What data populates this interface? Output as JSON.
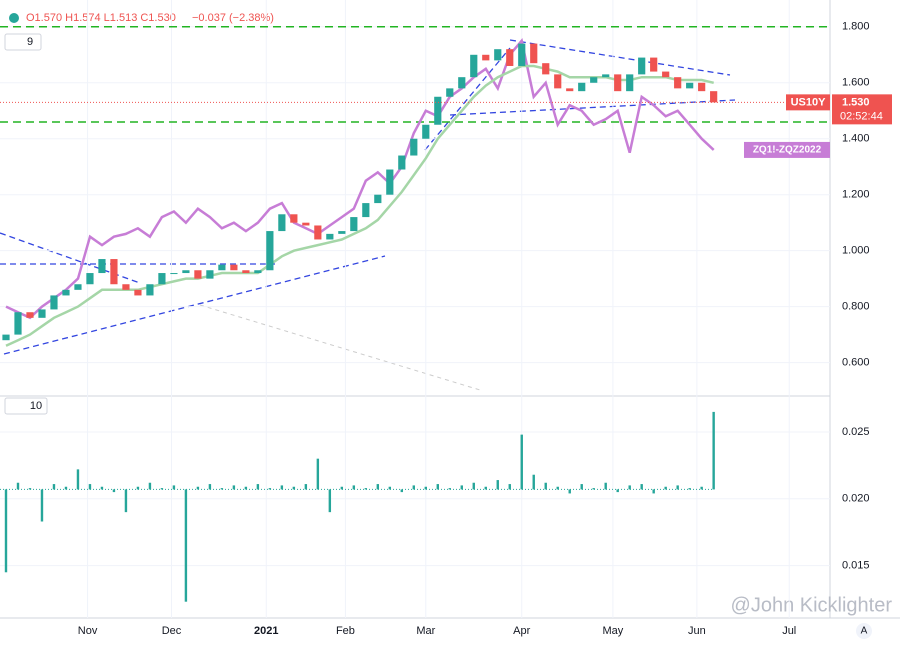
{
  "chart_data": {
    "type": "candlestick",
    "header": {
      "ohlc": "O1.570 H1.574 L1.513 C1.530",
      "change": "−0.037 (−2.38%)"
    },
    "symbol": "US10Y",
    "last": {
      "value": 1.53,
      "label": "1.530"
    },
    "countdown": "02:52:44",
    "overlay_name": "ZQ1!-ZQZ2022",
    "pane1_label": "9",
    "pane2_label": "10",
    "watermark": "@John Kicklighter",
    "auto_label": "A",
    "up_color": "#26a69a",
    "down_color": "#ef5350",
    "ma_color": "#a5d6a7",
    "overlay_color": "#c77dd6",
    "level_color": "#22b422",
    "first_open": 0.68,
    "close": [
      0.7,
      0.78,
      0.76,
      0.79,
      0.84,
      0.86,
      0.88,
      0.92,
      0.97,
      0.88,
      0.86,
      0.84,
      0.88,
      0.92,
      0.92,
      0.93,
      0.9,
      0.93,
      0.95,
      0.93,
      0.92,
      0.93,
      1.07,
      1.13,
      1.1,
      1.09,
      1.04,
      1.06,
      1.07,
      1.12,
      1.17,
      1.2,
      1.29,
      1.34,
      1.4,
      1.45,
      1.55,
      1.58,
      1.62,
      1.7,
      1.68,
      1.72,
      1.66,
      1.74,
      1.67,
      1.63,
      1.58,
      1.57,
      1.6,
      1.62,
      1.63,
      1.57,
      1.63,
      1.69,
      1.64,
      1.62,
      1.58,
      1.6,
      1.57,
      1.53
    ],
    "ma": [
      0.66,
      0.68,
      0.7,
      0.73,
      0.76,
      0.78,
      0.8,
      0.83,
      0.86,
      0.86,
      0.86,
      0.86,
      0.87,
      0.88,
      0.89,
      0.9,
      0.9,
      0.91,
      0.92,
      0.92,
      0.92,
      0.92,
      0.95,
      0.98,
      1.0,
      1.01,
      1.02,
      1.03,
      1.04,
      1.06,
      1.08,
      1.11,
      1.16,
      1.21,
      1.27,
      1.33,
      1.4,
      1.45,
      1.5,
      1.55,
      1.59,
      1.62,
      1.64,
      1.66,
      1.66,
      1.65,
      1.64,
      1.62,
      1.62,
      1.62,
      1.62,
      1.61,
      1.61,
      1.62,
      1.62,
      1.62,
      1.61,
      1.61,
      1.61,
      1.6
    ],
    "overlay": [
      0.8,
      0.78,
      0.76,
      0.8,
      0.83,
      0.86,
      0.9,
      1.05,
      1.02,
      1.05,
      1.06,
      1.08,
      1.05,
      1.12,
      1.14,
      1.1,
      1.15,
      1.12,
      1.08,
      1.1,
      1.07,
      1.1,
      1.15,
      1.17,
      1.1,
      1.08,
      1.06,
      1.09,
      1.12,
      1.15,
      1.25,
      1.28,
      1.24,
      1.3,
      1.42,
      1.5,
      1.48,
      1.55,
      1.58,
      1.62,
      1.65,
      1.58,
      1.7,
      1.75,
      1.55,
      1.6,
      1.45,
      1.52,
      1.5,
      1.45,
      1.47,
      1.5,
      1.35,
      1.55,
      1.52,
      1.48,
      1.5,
      1.45,
      1.4,
      1.36
    ],
    "spread": [
      0.0145,
      0.0212,
      0.0208,
      0.0183,
      0.0211,
      0.0209,
      0.0222,
      0.0211,
      0.0209,
      0.0205,
      0.019,
      0.0209,
      0.0212,
      0.0208,
      0.021,
      0.0123,
      0.0209,
      0.0211,
      0.0208,
      0.021,
      0.0209,
      0.0211,
      0.0208,
      0.021,
      0.0209,
      0.0211,
      0.023,
      0.019,
      0.0209,
      0.021,
      0.0208,
      0.0211,
      0.0209,
      0.0205,
      0.021,
      0.0209,
      0.0211,
      0.0208,
      0.021,
      0.0212,
      0.0209,
      0.0214,
      0.0211,
      0.0248,
      0.0218,
      0.0212,
      0.0209,
      0.0204,
      0.0211,
      0.0208,
      0.0212,
      0.0205,
      0.021,
      0.0211,
      0.0204,
      0.0209,
      0.021,
      0.0208,
      0.0209,
      0.0265
    ],
    "spread_base": 0.0207,
    "levels": [
      1.8,
      1.46
    ],
    "xlim": [
      -0.5,
      68.7
    ],
    "xticks": [
      {
        "value": 6.8,
        "label": "Nov"
      },
      {
        "value": 13.8,
        "label": "Dec"
      },
      {
        "value": 21.7,
        "label": "2021"
      },
      {
        "value": 28.3,
        "label": "Feb"
      },
      {
        "value": 35,
        "label": "Mar"
      },
      {
        "value": 43,
        "label": "Apr"
      },
      {
        "value": 50.6,
        "label": "May"
      },
      {
        "value": 57.6,
        "label": "Jun"
      },
      {
        "value": 65.3,
        "label": "Jul"
      }
    ],
    "ylim": [
      0.4806,
      1.8958
    ],
    "yticks": [
      {
        "value": 1.8,
        "label": "1.800"
      },
      {
        "value": 1.6,
        "label": "1.600"
      },
      {
        "value": 1.4,
        "label": "1.400"
      },
      {
        "value": 1.2,
        "label": "1.200"
      },
      {
        "value": 1.0,
        "label": "1.000"
      },
      {
        "value": 0.8,
        "label": "0.800"
      },
      {
        "value": 0.6,
        "label": "0.600"
      }
    ],
    "y2lim": [
      0.01108,
      0.02754
    ],
    "y2ticks": [
      {
        "value": 0.025,
        "label": "0.025"
      },
      {
        "value": 0.02,
        "label": "0.020"
      },
      {
        "value": 0.015,
        "label": "0.015"
      }
    ]
  }
}
